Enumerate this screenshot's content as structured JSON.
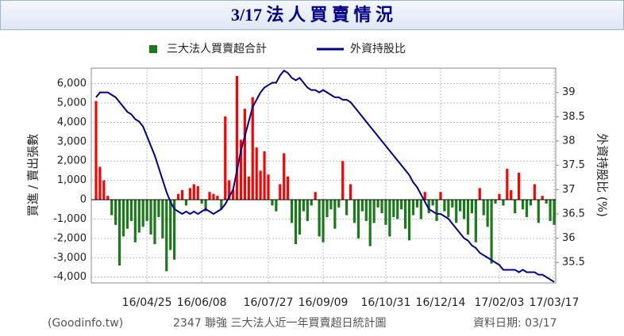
{
  "header": {
    "title": "3/17 法 人 買 賣 情 況"
  },
  "chart_data": {
    "type": "bar-line",
    "y_label": "買進 / 賣出張數",
    "y2_label": "外資持股比 (%)",
    "categories": [
      null,
      null,
      null,
      null,
      null,
      null,
      null,
      null,
      null,
      null,
      null,
      null,
      null,
      "16/04/25",
      null,
      null,
      null,
      null,
      null,
      null,
      null,
      null,
      null,
      null,
      null,
      null,
      null,
      "16/06/08",
      null,
      null,
      null,
      null,
      null,
      null,
      null,
      null,
      null,
      null,
      null,
      null,
      null,
      null,
      null,
      null,
      "16/07/27",
      null,
      null,
      null,
      null,
      null,
      null,
      null,
      null,
      null,
      null,
      null,
      null,
      null,
      "16/09/09",
      null,
      null,
      null,
      null,
      null,
      null,
      null,
      null,
      null,
      null,
      null,
      null,
      null,
      null,
      null,
      "16/10/31",
      null,
      null,
      null,
      null,
      null,
      null,
      null,
      null,
      null,
      null,
      null,
      null,
      null,
      "16/12/14",
      null,
      null,
      null,
      null,
      null,
      null,
      null,
      null,
      null,
      null,
      null,
      null,
      null,
      null,
      "17/02/03",
      null,
      null,
      null,
      null,
      null,
      null,
      null,
      null,
      null,
      null,
      null,
      null,
      null,
      "17/03/17"
    ],
    "series": [
      {
        "name": "三大法人買賣超合計",
        "color": "#1a7a1a",
        "positive_color": "#ff0000",
        "kind": "bar",
        "values": [
          5100,
          1700,
          1000,
          200,
          -800,
          -1300,
          -3400,
          -1900,
          -1500,
          -1100,
          -2200,
          -1700,
          -1400,
          -1100,
          -1800,
          -2300,
          -900,
          -2000,
          -3700,
          -2600,
          -3100,
          300,
          500,
          -300,
          600,
          800,
          700,
          -200,
          -600,
          400,
          300,
          200,
          -500,
          4300,
          1000,
          500,
          6400,
          3100,
          4700,
          1200,
          5300,
          2700,
          1500,
          2500,
          1300,
          -300,
          -600,
          800,
          2400,
          1200,
          -1200,
          -2300,
          -1800,
          -600,
          -1100,
          -300,
          400,
          -1900,
          -2200,
          -900,
          -500,
          -1500,
          -400,
          2000,
          -800,
          800,
          -1200,
          -2000,
          -600,
          -1100,
          -2400,
          -1200,
          -400,
          -700,
          -1300,
          -1900,
          -900,
          -1000,
          -500,
          -1500,
          -2100,
          -800,
          -400,
          -1000,
          400,
          -700,
          -300,
          -1100,
          400,
          -600,
          -900,
          -400,
          -1200,
          -600,
          -1000,
          -1800,
          -700,
          -2200,
          600,
          -800,
          -1400,
          -3300,
          -200,
          300,
          -300,
          1600,
          500,
          -700,
          1400,
          -500,
          -900,
          -300,
          800,
          -1200,
          200,
          -200,
          -1100,
          -1300
        ]
      },
      {
        "name": "外資持股比",
        "color": "#00008b",
        "kind": "line",
        "axis": "y2",
        "values": [
          38.9,
          39.0,
          39.0,
          39.0,
          38.95,
          38.9,
          38.8,
          38.7,
          38.6,
          38.55,
          38.45,
          38.4,
          38.3,
          38.1,
          37.9,
          37.7,
          37.45,
          37.2,
          36.95,
          36.75,
          36.6,
          36.55,
          36.5,
          36.55,
          36.5,
          36.55,
          36.5,
          36.55,
          36.6,
          36.55,
          36.5,
          36.55,
          36.6,
          36.7,
          36.85,
          37.0,
          37.4,
          37.8,
          38.1,
          38.4,
          38.7,
          38.85,
          39.0,
          39.1,
          39.15,
          39.2,
          39.2,
          39.35,
          39.45,
          39.4,
          39.3,
          39.25,
          39.3,
          39.2,
          39.1,
          39.05,
          39.05,
          39.0,
          39.05,
          39.0,
          38.95,
          38.9,
          38.9,
          38.85,
          38.85,
          38.8,
          38.7,
          38.6,
          38.5,
          38.4,
          38.3,
          38.2,
          38.1,
          38.0,
          37.9,
          37.8,
          37.7,
          37.6,
          37.5,
          37.4,
          37.3,
          37.15,
          37.05,
          36.9,
          36.75,
          36.6,
          36.55,
          36.5,
          36.5,
          36.45,
          36.4,
          36.3,
          36.2,
          36.1,
          36.0,
          35.95,
          35.85,
          35.8,
          35.7,
          35.65,
          35.6,
          35.55,
          35.5,
          35.45,
          35.35,
          35.35,
          35.35,
          35.35,
          35.3,
          35.35,
          35.3,
          35.3,
          35.3,
          35.25,
          35.25,
          35.2,
          35.15,
          35.1
        ]
      }
    ],
    "ylim": [
      -4300,
      6800
    ],
    "yticks": [
      {
        "value": -4000,
        "label": "-4,000"
      },
      {
        "value": -3000,
        "label": "-3,000"
      },
      {
        "value": -2000,
        "label": "-2,000"
      },
      {
        "value": -1000,
        "label": "-1,000"
      },
      0,
      {
        "value": 1000,
        "label": "1,000"
      },
      {
        "value": 2000,
        "label": "2,000"
      },
      {
        "value": 3000,
        "label": "3,000"
      },
      {
        "value": 4000,
        "label": "4,000"
      },
      {
        "value": 5000,
        "label": "5,000"
      },
      {
        "value": 6000,
        "label": "6,000"
      }
    ],
    "y2lim": [
      35.08,
      39.5
    ],
    "y2ticks": [
      35.5,
      36,
      36.5,
      37,
      37.5,
      38,
      38.5,
      39
    ],
    "grid": true
  },
  "footer": {
    "source": "(Goodinfo.tw)",
    "caption": "2347 聯強 三大法人近一年買賣超日統計圖",
    "date": "資料日期: 03/17"
  }
}
